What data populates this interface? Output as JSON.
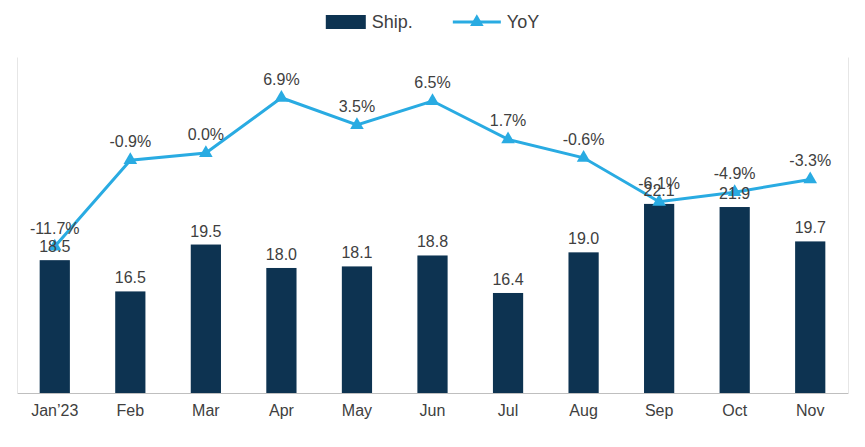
{
  "chart_data": {
    "type": "bar",
    "categories": [
      "Jan’23",
      "Feb",
      "Mar",
      "Apr",
      "May",
      "Jun",
      "Jul",
      "Aug",
      "Sep",
      "Oct",
      "Nov"
    ],
    "series": [
      {
        "name": "Ship.",
        "type": "bar",
        "color": "#0d3351",
        "values": [
          18.5,
          16.5,
          19.5,
          18.0,
          18.1,
          18.8,
          16.4,
          19.0,
          22.1,
          21.9,
          19.7
        ],
        "value_labels": [
          "18.5",
          "16.5",
          "19.5",
          "18.0",
          "18.1",
          "18.8",
          "16.4",
          "19.0",
          "22.1",
          "21.9",
          "19.7"
        ]
      },
      {
        "name": "YoY",
        "type": "line",
        "axis": "y2",
        "color": "#29abe2",
        "marker": "triangle",
        "values": [
          -11.7,
          -0.9,
          0.0,
          6.9,
          3.5,
          6.5,
          1.7,
          -0.6,
          -6.1,
          -4.9,
          -3.3
        ],
        "value_labels": [
          "-11.7%",
          "-0.9%",
          "0.0%",
          "6.9%",
          "3.5%",
          "6.5%",
          "1.7%",
          "-0.6%",
          "-6.1%",
          "-4.9%",
          "-3.3%"
        ]
      }
    ],
    "ylim": [
      10,
      31.5
    ],
    "y2lim": [
      -30,
      12
    ],
    "data_labels": true,
    "tick_labels": "x",
    "legend": "top",
    "grid": false
  }
}
